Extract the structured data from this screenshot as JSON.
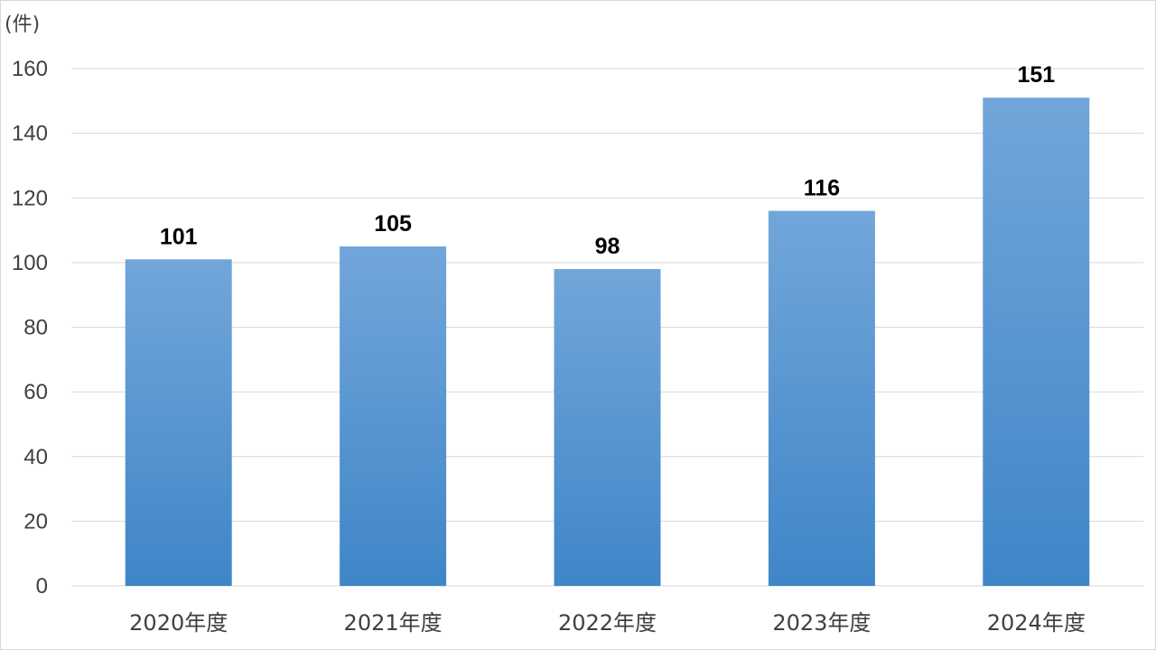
{
  "chart_data": {
    "type": "bar",
    "title": "",
    "unit_label": "(件)",
    "xlabel": "",
    "ylabel": "",
    "categories": [
      "2020年度",
      "2021年度",
      "2022年度",
      "2023年度",
      "2024年度"
    ],
    "values": [
      101,
      105,
      98,
      116,
      151
    ],
    "data_labels": [
      "101",
      "105",
      "98",
      "116",
      "151"
    ],
    "ylim": [
      0,
      160
    ],
    "yticks": [
      0,
      20,
      40,
      60,
      80,
      100,
      120,
      140,
      160
    ],
    "grid": true,
    "legend": "none",
    "colors": {
      "bar_top": "#72a6da",
      "bar_bottom": "#3f86c8",
      "gridline": "#d9d9d9",
      "axis_text": "#404040",
      "data_label": "#000000"
    }
  }
}
